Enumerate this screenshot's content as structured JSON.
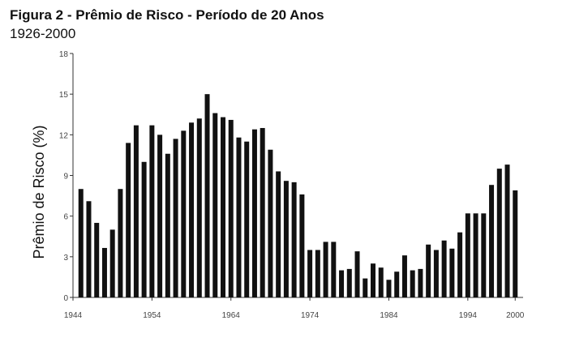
{
  "chart_data": {
    "type": "bar",
    "title": "Figura 2 - Prêmio de Risco - Período de 20 Anos",
    "subtitle": "1926-2000",
    "y_label": "Prêmio de Risco (%)",
    "color": "#111111",
    "x": [
      1945,
      1946,
      1947,
      1948,
      1949,
      1950,
      1951,
      1952,
      1953,
      1954,
      1955,
      1956,
      1957,
      1958,
      1959,
      1960,
      1961,
      1962,
      1963,
      1964,
      1965,
      1966,
      1967,
      1968,
      1969,
      1970,
      1971,
      1972,
      1973,
      1974,
      1975,
      1976,
      1977,
      1978,
      1979,
      1980,
      1981,
      1982,
      1983,
      1984,
      1985,
      1986,
      1987,
      1988,
      1989,
      1990,
      1991,
      1992,
      1993,
      1994,
      1995,
      1996,
      1997,
      1998,
      1999,
      2000
    ],
    "values": [
      8.0,
      7.1,
      5.5,
      3.65,
      5.0,
      8.0,
      11.4,
      12.7,
      10.0,
      12.7,
      12.0,
      10.6,
      11.7,
      12.3,
      12.9,
      13.2,
      15.0,
      13.6,
      13.3,
      13.1,
      11.8,
      11.5,
      12.4,
      12.5,
      10.9,
      9.3,
      8.6,
      8.5,
      7.6,
      3.5,
      3.5,
      4.1,
      4.1,
      2.0,
      2.1,
      3.4,
      1.4,
      2.5,
      2.2,
      1.3,
      1.9,
      3.1,
      2.0,
      2.1,
      3.9,
      3.5,
      4.2,
      3.6,
      4.8,
      6.2,
      6.2,
      6.2,
      8.3,
      9.5,
      9.8,
      7.9
    ],
    "xlim": [
      1944,
      2001
    ],
    "xticks": [
      1944,
      1954,
      1964,
      1974,
      1984,
      1994,
      2000
    ],
    "ylim": [
      0,
      18
    ],
    "yticks": [
      0,
      3,
      6,
      9,
      12,
      15,
      18
    ]
  }
}
